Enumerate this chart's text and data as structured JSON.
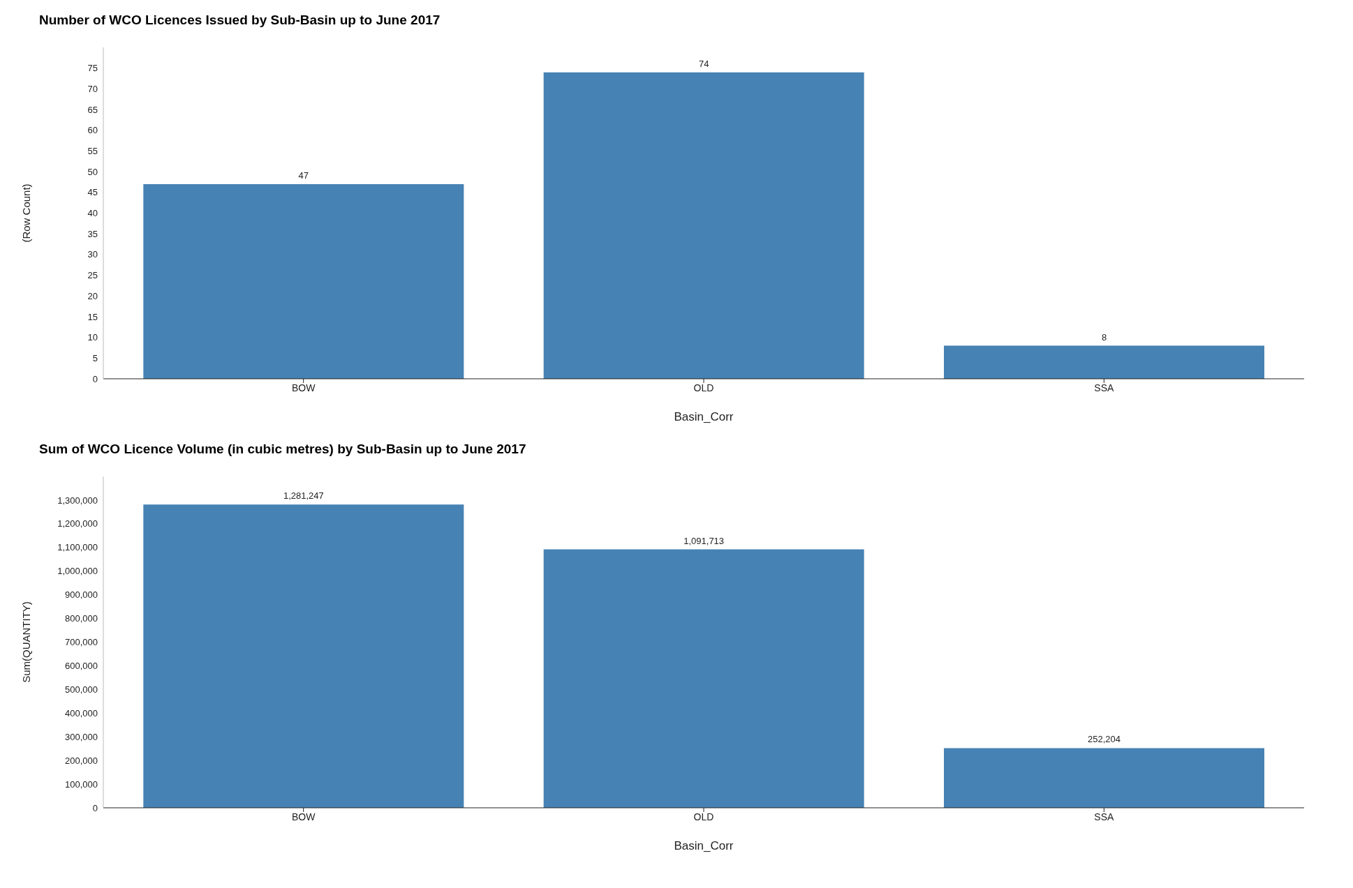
{
  "chart_data": [
    {
      "type": "bar",
      "title": "Number of WCO Licences Issued by Sub-Basin up to June 2017",
      "xlabel": "Basin_Corr",
      "ylabel": "(Row Count)",
      "categories": [
        "BOW",
        "OLD",
        "SSA"
      ],
      "values": [
        47,
        74,
        8
      ],
      "color": "#4682b4",
      "ylim": [
        0,
        80
      ],
      "yticks": [
        0,
        5,
        10,
        15,
        20,
        25,
        30,
        35,
        40,
        45,
        50,
        55,
        60,
        65,
        70,
        75
      ],
      "data_labels": true
    },
    {
      "type": "bar",
      "title": "Sum of WCO Licence Volume (in cubic metres) by Sub-Basin up to June 2017",
      "xlabel": "Basin_Corr",
      "ylabel": "Sum(QUANTITY)",
      "categories": [
        "BOW",
        "OLD",
        "SSA"
      ],
      "values": [
        1281247,
        1091713,
        252204
      ],
      "value_labels": [
        "1,281,247",
        "1,091,713",
        "252,204"
      ],
      "color": "#4682b4",
      "ylim": [
        0,
        1400000
      ],
      "yticks": [
        0,
        {
          "value": 100000,
          "label": "100,000"
        },
        {
          "value": 200000,
          "label": "200,000"
        },
        {
          "value": 300000,
          "label": "300,000"
        },
        {
          "value": 400000,
          "label": "400,000"
        },
        {
          "value": 500000,
          "label": "500,000"
        },
        {
          "value": 600000,
          "label": "600,000"
        },
        {
          "value": 700000,
          "label": "700,000"
        },
        {
          "value": 800000,
          "label": "800,000"
        },
        {
          "value": 900000,
          "label": "900,000"
        },
        {
          "value": 1000000,
          "label": "1,000,000"
        },
        {
          "value": 1100000,
          "label": "1,100,000"
        },
        {
          "value": 1200000,
          "label": "1,200,000"
        },
        {
          "value": 1300000,
          "label": "1,300,000"
        }
      ]
    }
  ]
}
